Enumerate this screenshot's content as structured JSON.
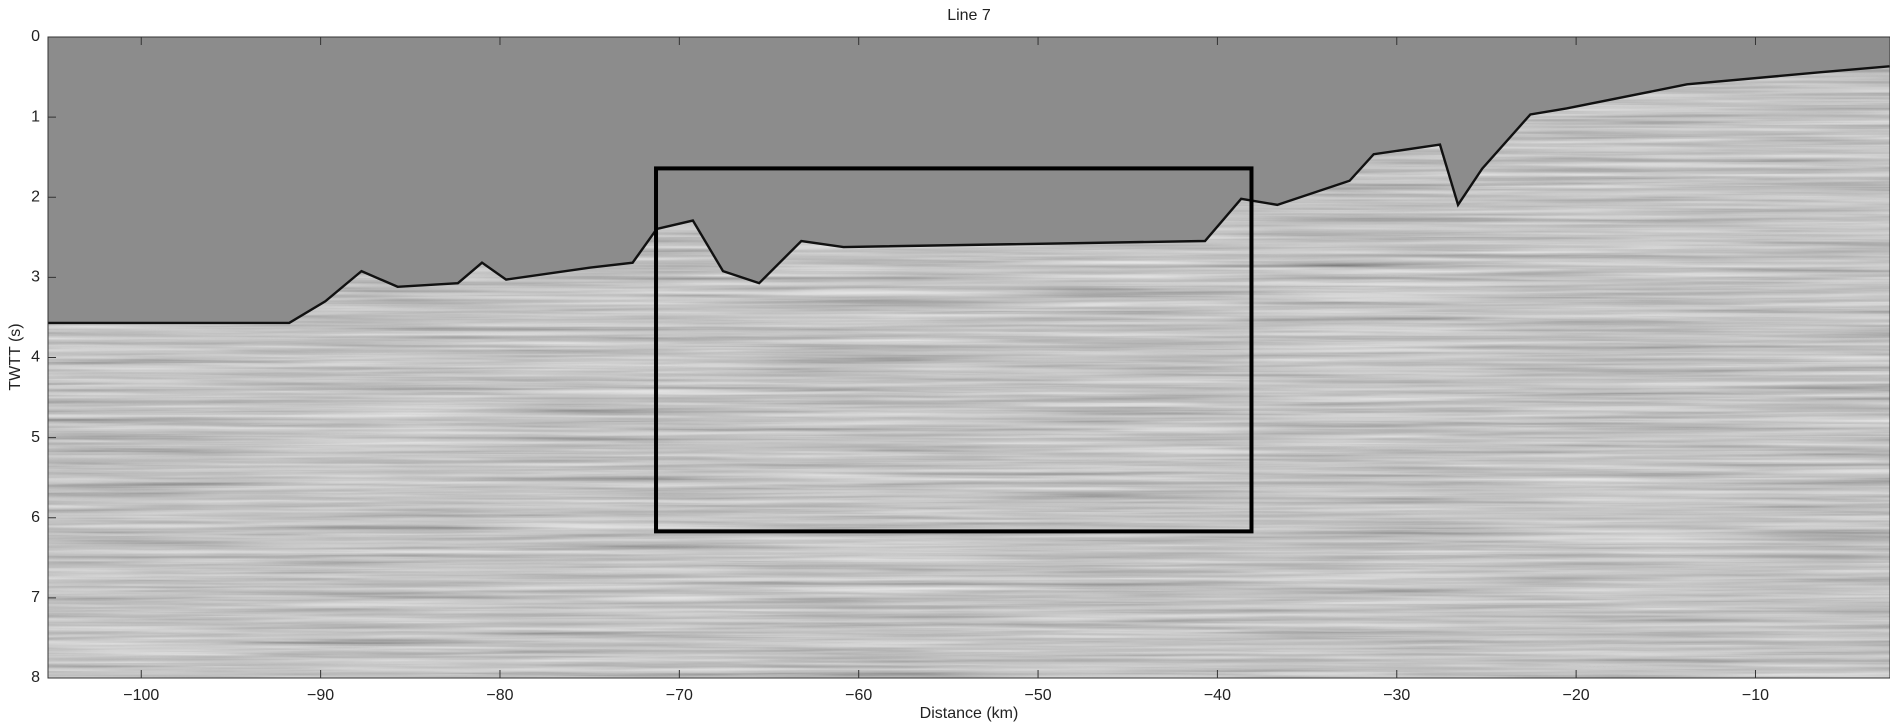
{
  "chart_data": {
    "type": "image",
    "title": "Line 7",
    "x_label": "Distance (km)",
    "y_label": "TWTT (s)",
    "xlim": [
      -105.2,
      -2.5
    ],
    "ylim": [
      8,
      0
    ],
    "xticks": [
      {
        "value": -100,
        "label": "−100"
      },
      {
        "value": -90,
        "label": "−90"
      },
      {
        "value": -80,
        "label": "−80"
      },
      {
        "value": -70,
        "label": "−70"
      },
      {
        "value": -60,
        "label": "−60"
      },
      {
        "value": -50,
        "label": "−50"
      },
      {
        "value": -40,
        "label": "−40"
      },
      {
        "value": -30,
        "label": "−30"
      },
      {
        "value": -20,
        "label": "−20"
      },
      {
        "value": -10,
        "label": "−10"
      }
    ],
    "yticks": [
      0,
      1,
      2,
      3,
      4,
      5,
      6,
      7,
      8
    ],
    "highlight_box": {
      "x": [
        -71.3,
        -38.1
      ],
      "y": [
        1.64,
        6.17
      ],
      "color": "#000000"
    }
  }
}
